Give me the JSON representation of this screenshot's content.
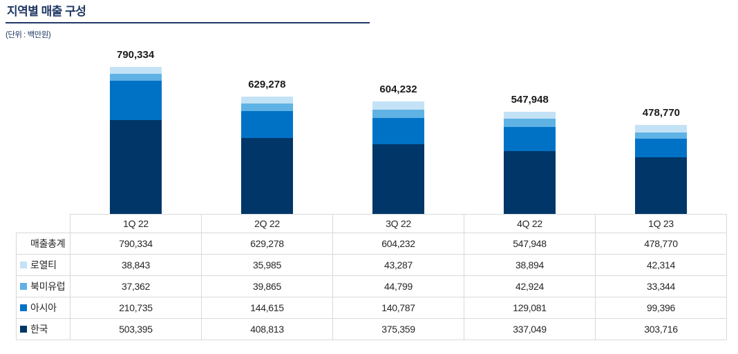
{
  "title": "지역별 매출 구성",
  "unit_note": "(단위 : 백만원)",
  "colors": {
    "title": "#1f3864",
    "table_border": "#d9d9d9",
    "table_text": "#262626",
    "bar_label": "#1a1a1a"
  },
  "chart_data": {
    "type": "bar",
    "stacked": true,
    "legend_position": "table-left",
    "grid": false,
    "categories": [
      "1Q 22",
      "2Q 22",
      "3Q 22",
      "4Q 22",
      "1Q 23"
    ],
    "totals_label": "매출총계",
    "totals": [
      790334,
      629278,
      604232,
      547948,
      478770
    ],
    "series": [
      {
        "name": "한국",
        "color": "#003668",
        "values": [
          503395,
          408813,
          375359,
          337049,
          303716
        ]
      },
      {
        "name": "아시아",
        "color": "#0072c6",
        "values": [
          210735,
          144615,
          140787,
          129081,
          99396
        ]
      },
      {
        "name": "북미유럽",
        "color": "#5fb2e4",
        "values": [
          37362,
          39865,
          44799,
          42924,
          33344
        ]
      },
      {
        "name": "로열티",
        "color": "#c3e2f6",
        "values": [
          38843,
          35985,
          43287,
          38894,
          42314
        ]
      }
    ]
  }
}
